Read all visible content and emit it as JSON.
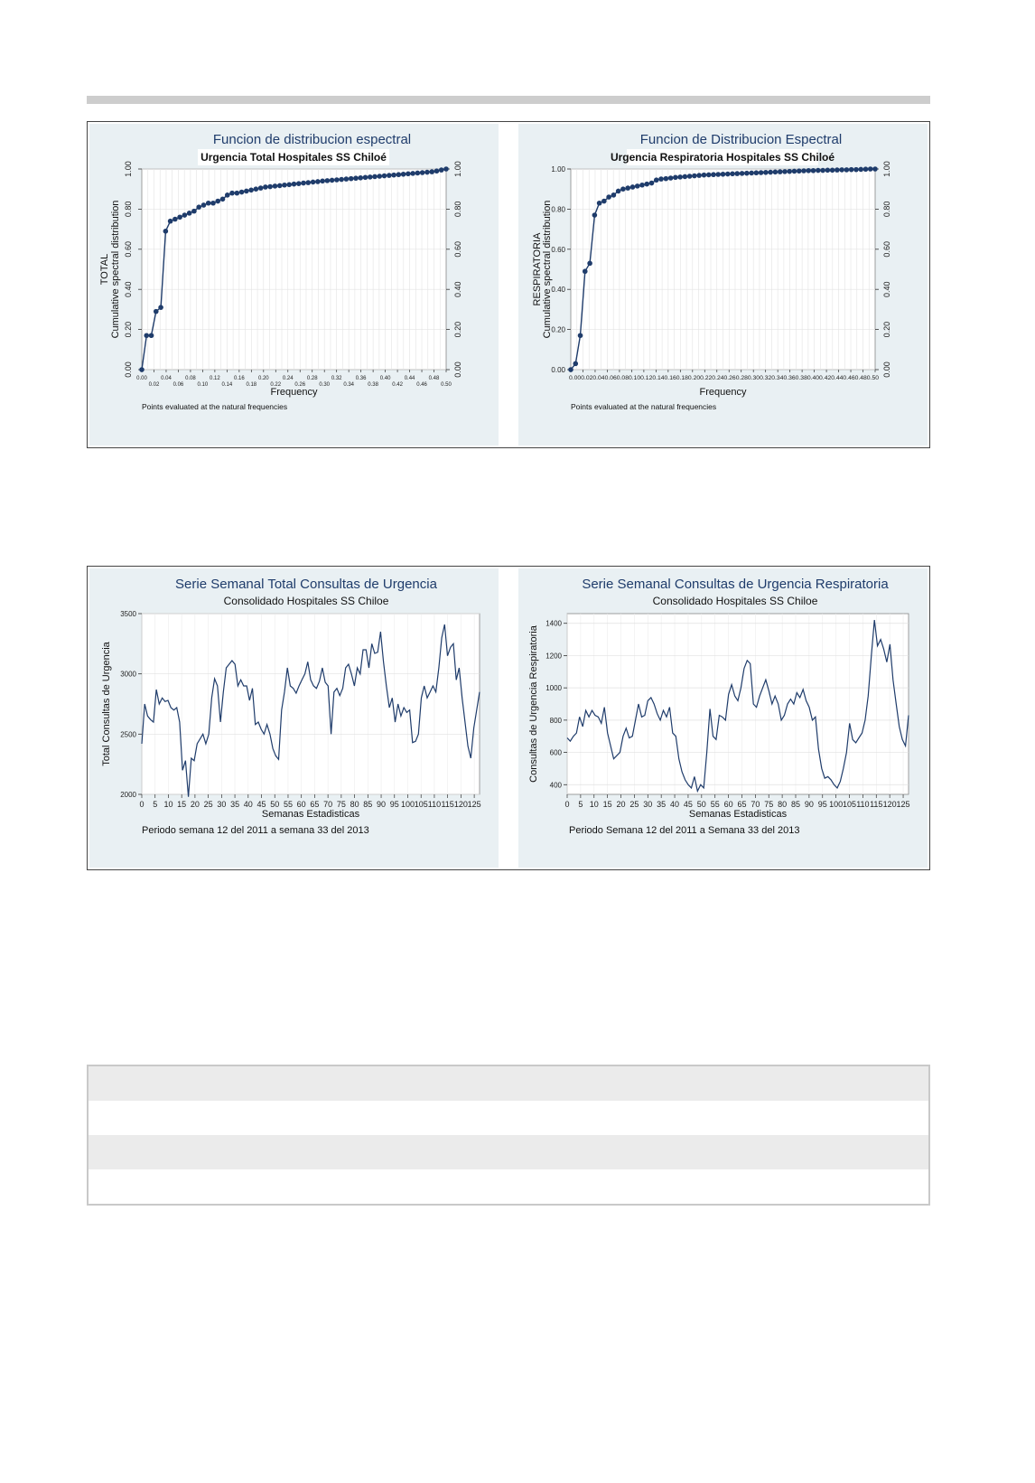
{
  "chart_data": [
    {
      "type": "scatter",
      "title": "Funcion de distribucion espectral",
      "subtitle": "Urgencia Total Hospitales SS Chiloé",
      "xlabel": "Frequency",
      "ylabel_line1": "TOTAL",
      "ylabel_line2": "Cumulative spectral distribution",
      "note": "Points evaluated at the natural frequencies",
      "xlim": [
        0,
        0.5
      ],
      "ylim": [
        0,
        1
      ],
      "x_ticks_top": [
        "0.00",
        "0.04",
        "0.08",
        "0.12",
        "0.16",
        "0.20",
        "0.24",
        "0.28",
        "0.32",
        "0.36",
        "0.40",
        "0.44",
        "0.48"
      ],
      "x_ticks_bottom": [
        "0.02",
        "0.06",
        "0.10",
        "0.14",
        "0.18",
        "0.22",
        "0.26",
        "0.30",
        "0.34",
        "0.38",
        "0.42",
        "0.46",
        "0.50"
      ],
      "y_ticks": [
        "0.00",
        "0.20",
        "0.40",
        "0.60",
        "0.80",
        "1.00"
      ],
      "color": "#1f3c6b",
      "x": [
        0.0,
        0.0078,
        0.0156,
        0.0234,
        0.0313,
        0.0391,
        0.0469,
        0.0547,
        0.0625,
        0.0703,
        0.0781,
        0.0859,
        0.0938,
        0.1016,
        0.1094,
        0.1172,
        0.125,
        0.1328,
        0.1406,
        0.1484,
        0.1563,
        0.1641,
        0.1719,
        0.1797,
        0.1875,
        0.1953,
        0.2031,
        0.2109,
        0.2188,
        0.2266,
        0.2344,
        0.2422,
        0.25,
        0.2578,
        0.2656,
        0.2734,
        0.2813,
        0.2891,
        0.2969,
        0.3047,
        0.3125,
        0.3203,
        0.3281,
        0.3359,
        0.3438,
        0.3516,
        0.3594,
        0.3672,
        0.375,
        0.3828,
        0.3906,
        0.3984,
        0.4063,
        0.4141,
        0.4219,
        0.4297,
        0.4375,
        0.4453,
        0.4531,
        0.4609,
        0.4688,
        0.4766,
        0.4844,
        0.4922,
        0.5
      ],
      "y": [
        0.0,
        0.17,
        0.17,
        0.29,
        0.31,
        0.69,
        0.74,
        0.75,
        0.76,
        0.77,
        0.78,
        0.79,
        0.81,
        0.82,
        0.83,
        0.83,
        0.84,
        0.85,
        0.87,
        0.88,
        0.88,
        0.885,
        0.89,
        0.895,
        0.9,
        0.905,
        0.91,
        0.912,
        0.915,
        0.917,
        0.92,
        0.922,
        0.925,
        0.927,
        0.93,
        0.932,
        0.935,
        0.937,
        0.94,
        0.942,
        0.944,
        0.946,
        0.948,
        0.95,
        0.952,
        0.954,
        0.956,
        0.958,
        0.96,
        0.962,
        0.964,
        0.966,
        0.968,
        0.97,
        0.972,
        0.974,
        0.976,
        0.978,
        0.98,
        0.982,
        0.984,
        0.986,
        0.99,
        0.995,
        1.0
      ]
    },
    {
      "type": "scatter",
      "title": "Funcion de Distribucion Espectral",
      "subtitle": "Urgencia Respiratoria Hospitales SS Chiloé",
      "xlabel": "Frequency",
      "ylabel_line1": "RESPIRATORIA",
      "ylabel_line2": "Cumulative spectral distribution",
      "note": "Points evaluated at the natural frequencies",
      "xlim": [
        0,
        0.5
      ],
      "ylim": [
        0,
        1
      ],
      "x_ticks_text": "0.000.020.040.060.080.100.120.140.160.180.200.220.240.260.280.300.320.340.360.380.400.420.440.460.480.50",
      "y_ticks": [
        "0.00",
        "0.20",
        "0.40",
        "0.60",
        "0.80",
        "1.00"
      ],
      "color": "#1f3c6b",
      "x": [
        0.0,
        0.0078,
        0.0156,
        0.0234,
        0.0313,
        0.0391,
        0.0469,
        0.0547,
        0.0625,
        0.0703,
        0.0781,
        0.0859,
        0.0938,
        0.1016,
        0.1094,
        0.1172,
        0.125,
        0.1328,
        0.1406,
        0.1484,
        0.1563,
        0.1641,
        0.1719,
        0.1797,
        0.1875,
        0.1953,
        0.2031,
        0.2109,
        0.2188,
        0.2266,
        0.2344,
        0.2422,
        0.25,
        0.2578,
        0.2656,
        0.2734,
        0.2813,
        0.2891,
        0.2969,
        0.3047,
        0.3125,
        0.3203,
        0.3281,
        0.3359,
        0.3438,
        0.3516,
        0.3594,
        0.3672,
        0.375,
        0.3828,
        0.3906,
        0.3984,
        0.4063,
        0.4141,
        0.4219,
        0.4297,
        0.4375,
        0.4453,
        0.4531,
        0.4609,
        0.4688,
        0.4766,
        0.4844,
        0.4922,
        0.5
      ],
      "y": [
        0.0,
        0.03,
        0.17,
        0.49,
        0.53,
        0.77,
        0.83,
        0.84,
        0.86,
        0.87,
        0.89,
        0.9,
        0.905,
        0.91,
        0.915,
        0.92,
        0.925,
        0.93,
        0.945,
        0.95,
        0.952,
        0.955,
        0.958,
        0.96,
        0.962,
        0.964,
        0.966,
        0.968,
        0.97,
        0.971,
        0.972,
        0.973,
        0.974,
        0.975,
        0.976,
        0.977,
        0.978,
        0.979,
        0.98,
        0.981,
        0.982,
        0.983,
        0.984,
        0.985,
        0.986,
        0.987,
        0.988,
        0.989,
        0.99,
        0.991,
        0.992,
        0.992,
        0.993,
        0.993,
        0.994,
        0.994,
        0.995,
        0.996,
        0.996,
        0.997,
        0.997,
        0.998,
        0.999,
        1.0,
        1.0
      ]
    },
    {
      "type": "line",
      "title": "Serie Semanal Total Consultas de Urgencia",
      "subtitle": "Consolidado Hospitales SS Chiloe",
      "xlabel": "Semanas Estadisticas",
      "ylabel": "Total Consultas de Urgencia",
      "note": "Periodo semana 12 del 2011 a semana 33 del 2013",
      "xlim": [
        0,
        127
      ],
      "ylim": [
        2000,
        3500
      ],
      "x_ticks": [
        "0",
        "5",
        "10",
        "15",
        "20",
        "25",
        "30",
        "35",
        "40",
        "45",
        "50",
        "55",
        "60",
        "65",
        "70",
        "75",
        "80",
        "85",
        "90",
        "95",
        "100",
        "105",
        "110",
        "115",
        "120",
        "125"
      ],
      "y_ticks": [
        "2000",
        "2500",
        "3000",
        "3500"
      ],
      "color": "#1f3c6b",
      "y": [
        2420,
        2750,
        2650,
        2620,
        2600,
        2870,
        2750,
        2800,
        2770,
        2780,
        2720,
        2700,
        2720,
        2600,
        2200,
        2280,
        1980,
        2300,
        2280,
        2420,
        2460,
        2500,
        2420,
        2500,
        2800,
        2960,
        2900,
        2600,
        2850,
        3050,
        3080,
        3110,
        3080,
        2900,
        2950,
        2900,
        2900,
        2780,
        2880,
        2580,
        2600,
        2540,
        2500,
        2580,
        2500,
        2380,
        2320,
        2290,
        2700,
        2850,
        3050,
        2900,
        2880,
        2840,
        2900,
        2950,
        3000,
        3100,
        2950,
        2900,
        2880,
        2940,
        3050,
        2930,
        2900,
        2500,
        2850,
        2880,
        2820,
        2880,
        3050,
        3080,
        3000,
        2900,
        3050,
        3000,
        3200,
        3200,
        3050,
        3250,
        3170,
        3180,
        3350,
        3100,
        2900,
        2720,
        2800,
        2600,
        2750,
        2650,
        2720,
        2680,
        2700,
        2430,
        2440,
        2500,
        2800,
        2900,
        2800,
        2850,
        2900,
        2850,
        3050,
        3300,
        3410,
        3150,
        3220,
        3250,
        2950,
        3050,
        2800,
        2600,
        2400,
        2300,
        2550,
        2700,
        2850
      ]
    },
    {
      "type": "line",
      "title": "Serie Semanal Consultas de Urgencia Respiratoria",
      "subtitle": "Consolidado Hospitales SS Chiloe",
      "xlabel": "Semanas Estadisticas",
      "ylabel": "Consultas de Urgencia Respiratoria",
      "note": "Periodo Semana 12 del 2011 a Semana 33 del 2013",
      "xlim": [
        0,
        127
      ],
      "ylim": [
        340,
        1460
      ],
      "x_ticks": [
        "0",
        "5",
        "10",
        "15",
        "20",
        "25",
        "30",
        "35",
        "40",
        "45",
        "50",
        "55",
        "60",
        "65",
        "70",
        "75",
        "80",
        "85",
        "90",
        "95",
        "100",
        "105",
        "110",
        "115",
        "120",
        "125"
      ],
      "y_ticks": [
        "400",
        "600",
        "800",
        "1000",
        "1200",
        "1400"
      ],
      "color": "#1f3c6b",
      "y": [
        690,
        670,
        700,
        720,
        820,
        760,
        860,
        820,
        860,
        830,
        820,
        780,
        880,
        720,
        640,
        560,
        580,
        600,
        700,
        750,
        690,
        700,
        800,
        900,
        820,
        830,
        920,
        940,
        900,
        840,
        800,
        860,
        820,
        880,
        720,
        700,
        560,
        480,
        430,
        400,
        380,
        450,
        360,
        400,
        380,
        600,
        870,
        700,
        680,
        830,
        820,
        800,
        960,
        1020,
        950,
        920,
        1000,
        1120,
        1170,
        1150,
        900,
        880,
        950,
        1000,
        1050,
        980,
        900,
        950,
        900,
        800,
        830,
        900,
        930,
        900,
        970,
        940,
        990,
        920,
        880,
        800,
        820,
        620,
        500,
        440,
        450,
        430,
        400,
        380,
        420,
        500,
        600,
        780,
        680,
        660,
        690,
        720,
        800,
        950,
        1200,
        1420,
        1260,
        1300,
        1240,
        1160,
        1270,
        1050,
        900,
        760,
        680,
        640,
        830
      ]
    }
  ],
  "bottom_table": {
    "rows": 4
  }
}
